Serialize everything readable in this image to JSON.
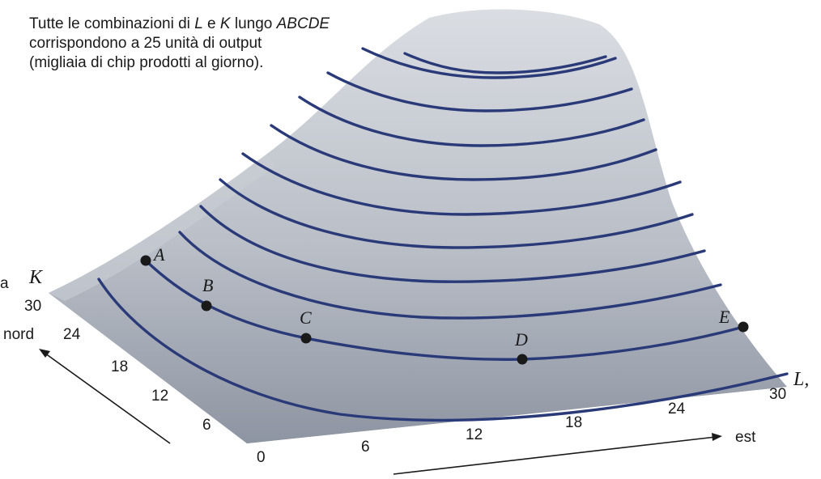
{
  "caption": {
    "line1_pre": "Tutte le combinazioni di ",
    "line1_L": "L",
    "line1_mid": " e ",
    "line1_K": "K",
    "line1_mid2": " lungo ",
    "line1_path": "ABCDE",
    "line2": "corrispondono a 25 unità di output",
    "line3": "(migliaia di chip prodotti al giorno)."
  },
  "axes": {
    "k_axis": {
      "letter": "K",
      "fragment_left": "a",
      "direction": "nord",
      "ticks": [
        "30",
        "24",
        "18",
        "12",
        "6"
      ]
    },
    "l_axis": {
      "letter": "L,",
      "direction": "est",
      "ticks": [
        "0",
        "6",
        "12",
        "18",
        "24",
        "30"
      ]
    }
  },
  "points": [
    {
      "id": "A",
      "label": "A"
    },
    {
      "id": "B",
      "label": "B"
    },
    {
      "id": "C",
      "label": "C"
    },
    {
      "id": "D",
      "label": "D"
    },
    {
      "id": "E",
      "label": "E"
    }
  ],
  "colors": {
    "surface_top": "#d9dde3",
    "surface_bottom": "#8f96a3",
    "contour": "#2a3a78",
    "text": "#1a1a1a"
  }
}
